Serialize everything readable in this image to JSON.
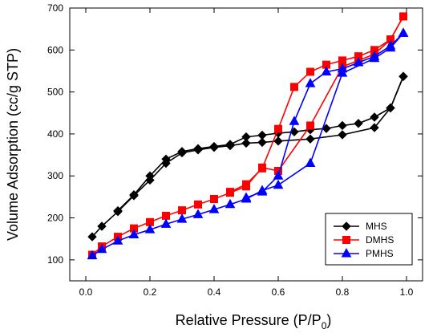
{
  "chart_data": {
    "type": "line",
    "xlabel": "Relative Pressure (P/P",
    "xlabel_sub": "0",
    "xlabel_close": ")",
    "ylabel": "Volume Adsorption (cc/g STP)",
    "xlim": [
      -0.05,
      1.05
    ],
    "ylim": [
      50,
      700
    ],
    "xticks": [
      0.0,
      0.2,
      0.4,
      0.6,
      0.8,
      1.0
    ],
    "xtick_labels": [
      "0.0",
      "0.2",
      "0.4",
      "0.6",
      "0.8",
      "1.0"
    ],
    "yticks": [
      100,
      200,
      300,
      400,
      500,
      600,
      700
    ],
    "ytick_labels": [
      "100",
      "200",
      "300",
      "400",
      "500",
      "600",
      "700"
    ],
    "grid": false,
    "legend_position": "bottom-right",
    "series": [
      {
        "name": "MHS",
        "color": "#000000",
        "marker": "diamond",
        "adsorption": {
          "x": [
            0.02,
            0.05,
            0.1,
            0.15,
            0.2,
            0.25,
            0.3,
            0.35,
            0.4,
            0.45,
            0.5,
            0.55,
            0.6,
            0.7,
            0.8,
            0.9,
            0.95,
            0.99
          ],
          "y": [
            155,
            180,
            215,
            253,
            290,
            330,
            355,
            362,
            368,
            372,
            378,
            380,
            383,
            388,
            398,
            415,
            462,
            537
          ]
        },
        "desorption": {
          "x": [
            0.99,
            0.95,
            0.9,
            0.85,
            0.8,
            0.75,
            0.7,
            0.65,
            0.6,
            0.55,
            0.5,
            0.45,
            0.4,
            0.35,
            0.3,
            0.25,
            0.2,
            0.15,
            0.1
          ],
          "y": [
            537,
            462,
            440,
            425,
            420,
            413,
            410,
            405,
            402,
            397,
            393,
            375,
            370,
            365,
            358,
            340,
            300,
            255,
            217
          ]
        }
      },
      {
        "name": "DMHS",
        "color": "#ff0000",
        "marker": "square",
        "adsorption": {
          "x": [
            0.02,
            0.05,
            0.1,
            0.15,
            0.2,
            0.25,
            0.3,
            0.35,
            0.4,
            0.45,
            0.5,
            0.55,
            0.6,
            0.7,
            0.8,
            0.85,
            0.9,
            0.95,
            0.99
          ],
          "y": [
            112,
            132,
            155,
            175,
            190,
            205,
            218,
            232,
            245,
            260,
            275,
            320,
            312,
            420,
            560,
            575,
            590,
            625,
            680
          ]
        },
        "desorption": {
          "x": [
            0.99,
            0.95,
            0.9,
            0.85,
            0.8,
            0.75,
            0.7,
            0.65,
            0.6,
            0.55,
            0.5,
            0.45
          ],
          "y": [
            680,
            625,
            600,
            585,
            575,
            565,
            548,
            512,
            412,
            318,
            280,
            262
          ]
        }
      },
      {
        "name": "PMHS",
        "color": "#0000ff",
        "marker": "triangle",
        "adsorption": {
          "x": [
            0.02,
            0.05,
            0.1,
            0.15,
            0.2,
            0.25,
            0.3,
            0.35,
            0.4,
            0.45,
            0.5,
            0.55,
            0.6,
            0.7,
            0.8,
            0.9,
            0.95,
            0.99
          ],
          "y": [
            110,
            125,
            145,
            160,
            172,
            185,
            197,
            208,
            220,
            232,
            245,
            265,
            278,
            330,
            545,
            580,
            605,
            640
          ]
        },
        "desorption": {
          "x": [
            0.99,
            0.95,
            0.9,
            0.85,
            0.8,
            0.75,
            0.7,
            0.65,
            0.6,
            0.55,
            0.5
          ],
          "y": [
            640,
            610,
            585,
            570,
            555,
            548,
            520,
            430,
            300,
            262,
            248
          ]
        }
      }
    ]
  }
}
